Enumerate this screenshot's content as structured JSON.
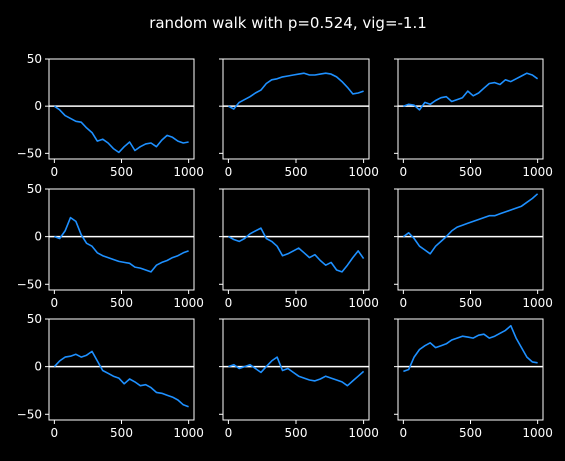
{
  "colors": {
    "background": "#000000",
    "foreground": "#ffffff",
    "line": "#1e90ff",
    "zero_line": "#ffffff"
  },
  "chart_data": {
    "type": "line",
    "title": "random walk with p=0.524, vig=-1.1",
    "grid": false,
    "layout": {
      "rows": 3,
      "cols": 3,
      "sharey": true
    },
    "xlim": [
      -40,
      1040
    ],
    "ylim": [
      -56,
      50
    ],
    "xticks": [
      0,
      500,
      1000
    ],
    "yticks": [
      -50,
      0,
      50
    ],
    "xtick_labels": [
      "0",
      "500",
      "1000"
    ],
    "ytick_labels": [
      "−50",
      "0",
      "50"
    ],
    "panels": [
      {
        "x": [
          0,
          40,
          80,
          120,
          160,
          200,
          240,
          280,
          320,
          360,
          400,
          440,
          480,
          520,
          560,
          600,
          640,
          680,
          720,
          760,
          800,
          840,
          880,
          920,
          960,
          1000
        ],
        "y": [
          0,
          -4,
          -10,
          -13,
          -16,
          -17,
          -23,
          -28,
          -37,
          -35,
          -39,
          -45,
          -49,
          -43,
          -38,
          -47,
          -43,
          -40,
          -39,
          -43,
          -36,
          -31,
          -33,
          -37,
          -39,
          -38
        ]
      },
      {
        "x": [
          0,
          40,
          80,
          120,
          160,
          200,
          240,
          280,
          320,
          360,
          400,
          440,
          480,
          520,
          560,
          600,
          640,
          680,
          720,
          760,
          800,
          840,
          880,
          920,
          960,
          1000
        ],
        "y": [
          0,
          -3,
          4,
          7,
          10,
          14,
          17,
          24,
          28,
          29,
          31,
          32,
          33,
          34,
          35,
          33,
          33,
          34,
          35,
          34,
          31,
          26,
          20,
          13,
          14,
          16
        ]
      },
      {
        "x": [
          0,
          40,
          80,
          120,
          160,
          200,
          240,
          280,
          320,
          360,
          400,
          440,
          480,
          520,
          560,
          600,
          640,
          680,
          720,
          760,
          800,
          840,
          880,
          920,
          960,
          1000
        ],
        "y": [
          0,
          2,
          1,
          -4,
          4,
          2,
          6,
          9,
          10,
          5,
          7,
          9,
          16,
          11,
          14,
          19,
          24,
          25,
          23,
          28,
          26,
          29,
          32,
          35,
          33,
          29
        ]
      },
      {
        "x": [
          0,
          40,
          80,
          120,
          160,
          200,
          240,
          280,
          320,
          360,
          400,
          440,
          480,
          520,
          560,
          600,
          640,
          680,
          720,
          760,
          800,
          840,
          880,
          920,
          960,
          1000
        ],
        "y": [
          0,
          -2,
          6,
          20,
          16,
          2,
          -7,
          -10,
          -17,
          -20,
          -22,
          -24,
          -26,
          -27,
          -28,
          -32,
          -33,
          -35,
          -37,
          -30,
          -27,
          -25,
          -22,
          -20,
          -17,
          -15
        ]
      },
      {
        "x": [
          0,
          40,
          80,
          120,
          160,
          200,
          240,
          280,
          320,
          360,
          400,
          440,
          480,
          520,
          560,
          600,
          640,
          680,
          720,
          760,
          800,
          840,
          880,
          920,
          960,
          1000
        ],
        "y": [
          0,
          -3,
          -5,
          -2,
          3,
          6,
          9,
          -2,
          -5,
          -10,
          -20,
          -18,
          -15,
          -12,
          -17,
          -22,
          -19,
          -25,
          -30,
          -27,
          -35,
          -37,
          -30,
          -22,
          -15,
          -23
        ]
      },
      {
        "x": [
          0,
          40,
          80,
          120,
          160,
          200,
          240,
          280,
          320,
          360,
          400,
          440,
          480,
          520,
          560,
          600,
          640,
          680,
          720,
          760,
          800,
          840,
          880,
          920,
          960,
          1000
        ],
        "y": [
          0,
          4,
          -2,
          -10,
          -14,
          -18,
          -10,
          -5,
          0,
          6,
          10,
          12,
          14,
          16,
          18,
          20,
          22,
          22,
          24,
          26,
          28,
          30,
          32,
          36,
          40,
          45
        ]
      },
      {
        "x": [
          0,
          40,
          80,
          120,
          160,
          200,
          240,
          280,
          320,
          360,
          400,
          440,
          480,
          520,
          560,
          600,
          640,
          680,
          720,
          760,
          800,
          840,
          880,
          920,
          960,
          1000
        ],
        "y": [
          0,
          6,
          10,
          11,
          13,
          10,
          12,
          16,
          6,
          -4,
          -7,
          -10,
          -12,
          -18,
          -13,
          -16,
          -20,
          -19,
          -22,
          -27,
          -28,
          -30,
          -32,
          -35,
          -40,
          -42
        ]
      },
      {
        "x": [
          0,
          40,
          80,
          120,
          160,
          200,
          240,
          280,
          320,
          360,
          400,
          440,
          480,
          520,
          560,
          600,
          640,
          680,
          720,
          760,
          800,
          840,
          880,
          920,
          960,
          1000
        ],
        "y": [
          0,
          2,
          -2,
          0,
          2,
          -2,
          -6,
          0,
          6,
          10,
          -4,
          -2,
          -6,
          -10,
          -12,
          -14,
          -15,
          -13,
          -10,
          -12,
          -14,
          -16,
          -20,
          -15,
          -10,
          -5
        ]
      },
      {
        "x": [
          0,
          40,
          80,
          120,
          160,
          200,
          240,
          280,
          320,
          360,
          400,
          440,
          480,
          520,
          560,
          600,
          640,
          680,
          720,
          760,
          800,
          840,
          880,
          920,
          960,
          1000
        ],
        "y": [
          -5,
          -3,
          10,
          18,
          22,
          25,
          20,
          22,
          24,
          28,
          30,
          32,
          31,
          30,
          33,
          34,
          30,
          32,
          35,
          38,
          43,
          30,
          20,
          10,
          5,
          4
        ]
      }
    ]
  }
}
